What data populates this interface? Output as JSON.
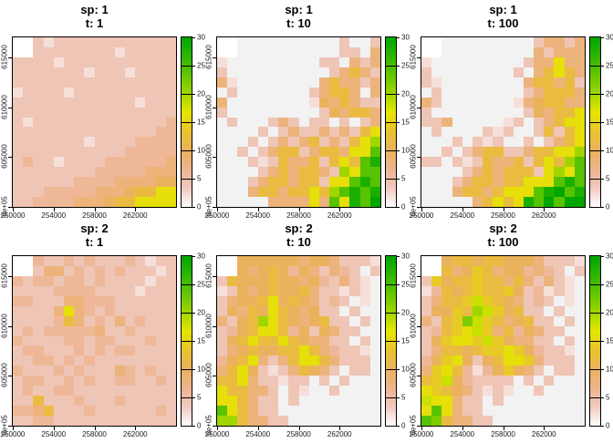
{
  "figure": {
    "background": "#ffffff",
    "text_color": "#000000",
    "tick_text_color": "#1a1a1a",
    "value_encoding": "each grid character is a hex digit; cell value = digit x 2 (range 0-30); '.' = no data (white)",
    "colors": {
      "na_color": "#FFFFFF",
      "zero_color": "#F2F2F2",
      "ramp_stops_low_to_high": [
        "#FFFFFF",
        "#F0C9C0",
        "#EDB48E",
        "#EBB25E",
        "#E8C32E",
        "#E6E600",
        "#A0D600",
        "#63C600",
        "#2DB600",
        "#00A600"
      ]
    }
  },
  "chart_data": {
    "type": "heatmap",
    "layout": "2 rows x 3 columns of panels",
    "x_range": [
      250000,
      266000
    ],
    "y_range": [
      600000,
      617000
    ],
    "cell_size": 1000,
    "grid_cols": 16,
    "grid_rows": 17,
    "legend_position": "right of each panel",
    "x_ticks": [
      {
        "label": "250000",
        "value": 250000
      },
      {
        "label": "254000",
        "value": 254000
      },
      {
        "label": "258000",
        "value": 258000
      },
      {
        "label": "262000",
        "value": 262000
      }
    ],
    "y_ticks": [
      {
        "label": "6e+05",
        "value": 600000
      },
      {
        "label": "605000",
        "value": 605000
      },
      {
        "label": "610000",
        "value": 610000
      },
      {
        "label": "615000",
        "value": 615000
      }
    ],
    "colorkey": {
      "min": 0,
      "max": 30,
      "tick_values": [
        0,
        5,
        10,
        15,
        20,
        25,
        30
      ],
      "tick_labels": [
        "0",
        "5",
        "10",
        "15",
        "20",
        "25",
        "30"
      ]
    },
    "panels": [
      {
        "title_line1": "sp: 1",
        "title_line2": "t: 1",
        "grid": [
          "..21222222222222",
          "..22222222122222",
          "2222122222222222",
          "2222222122212222",
          "2222222222222222",
          "1222212222222222",
          "2222222222221222",
          "2222222222222222",
          "2122222222222223",
          "2222222222222233",
          "2222222122223333",
          "2222222222233333",
          "2322122223333334",
          "2222222233333444",
          "2222223333444455",
          "2223333344456688",
          "2233334445668888"
        ]
      },
      {
        "title_line1": "sp: 1",
        "title_line2": "t: 10",
        "grid": [
          "..00000000002002",
          "..00000000002204",
          "1000000000220424",
          "2000000000024642",
          "4100000000464424",
          "0200000002466404",
          "4000000001546422",
          "2000000000254664",
          "0200024202202024",
          "0000202422424268",
          "000202424624268A",
          "002024662466488C",
          "00021264462686CE",
          "000024646642A8CC",
          "0002466466288CEC",
          "00046646686ACECE",
          "00000444484C8ECF"
        ]
      },
      {
        "title_line1": "sp: 1",
        "title_line2": "t: 100",
        "grid": [
          "..00000000024424",
          "..00000000042444",
          "1000000000244844",
          "2000000002046864",
          "2100000000466462",
          "0200000000246664",
          "4200000001456644",
          "2000000000254668",
          "2240000012024688",
          "0200002120026268",
          "0002021200202468",
          "002024662246688A",
          "22021264462686AC",
          "0000246466628A8C",
          "0002466466888CEC",
          "00046646888CEFCE",
          "0000046868ECFCFF"
        ]
      },
      {
        "title_line1": "sp: 2",
        "title_line2": "t: 1",
        "grid": [
          "..32232322232122",
          "..24423232322212",
          "3233233232222122",
          "2222333322221222",
          "3322244333222222",
          "2222484323222222",
          "2222364232423222",
          "2323333342232222",
          "3222233233222322",
          "2332223232332222",
          "2233232322222222",
          "3222323222432322",
          "2332232322332232",
          "2322332222222222",
          "2262223222322222",
          "3346222322222232",
          "2233222222222222"
        ]
      },
      {
        "title_line1": "sp: 2",
        "title_line2": "t: 10",
        "grid": [
          "..55555545542221",
          "..54565354243202",
          "2655565545324210",
          "1254565564221210",
          "2455685654232010",
          "2546586545220200",
          "4256A86545622020",
          "2356886352542200",
          "2568668654422020",
          "2456556686432210",
          "3568424688642220",
          "4685212465420220",
          "6684221220202000",
          "8664420210020000",
          "8864220200000000",
          "C864220000000000",
          "AA64422000000000"
        ]
      },
      {
        "title_line1": "sp: 2",
        "title_line2": "t: 100",
        "grid": [
          "..56656655542221",
          "..64576455343202",
          "2756676646424210",
          "1365676675231210",
          "2466797654232010",
          "25576A9756220200",
          "4267B97645622020",
          "2367897463542200",
          "2578879754422020",
          "2466567787532210",
          "3578525688742220",
          "4786313575420220",
          "6795322220202000",
          "8765421210020000",
          "9884220200000000",
          "8C84220000000000",
          "CB64422000000000"
        ]
      }
    ]
  }
}
